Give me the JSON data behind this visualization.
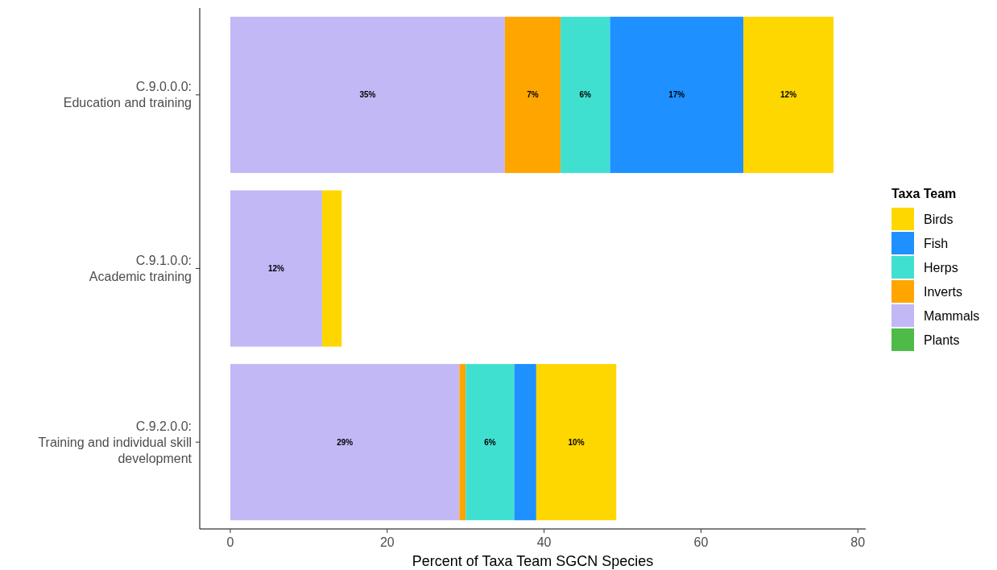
{
  "chart_data": {
    "type": "bar",
    "orientation": "horizontal",
    "stacked": true,
    "xlabel": "Percent of Taxa Team SGCN Species",
    "legend_title": "Taxa Team",
    "legend": "right",
    "categories": [
      "C.9.0.0.0:\nEducation and training",
      "C.9.1.0.0:\nAcademic training",
      "C.9.2.0.0:\nTraining and individual skill\ndevelopment"
    ],
    "xlim": [
      -3.9,
      81
    ],
    "xticks": [
      0,
      20,
      40,
      60,
      80
    ],
    "grid": false,
    "series": [
      {
        "name": "Plants",
        "color": "#4cbb47",
        "values": [
          null,
          null,
          null
        ],
        "value_labels": [
          null,
          null,
          null
        ]
      },
      {
        "name": "Mammals",
        "color": "#c2b8f5",
        "values": [
          35.0,
          11.7,
          29.2
        ],
        "value_labels": [
          "35%",
          "12%",
          "29%"
        ]
      },
      {
        "name": "Inverts",
        "color": "#ffa500",
        "values": [
          7.1,
          null,
          0.8
        ],
        "value_labels": [
          "7%",
          null,
          null
        ]
      },
      {
        "name": "Herps",
        "color": "#40e0d0",
        "values": [
          6.3,
          null,
          6.2
        ],
        "value_labels": [
          "6%",
          null,
          "6%"
        ]
      },
      {
        "name": "Fish",
        "color": "#1e90ff",
        "values": [
          17.0,
          null,
          2.8
        ],
        "value_labels": [
          "17%",
          null,
          null
        ]
      },
      {
        "name": "Birds",
        "color": "#ffd700",
        "values": [
          11.5,
          2.5,
          10.2
        ],
        "value_labels": [
          "12%",
          null,
          "10%"
        ]
      }
    ]
  }
}
